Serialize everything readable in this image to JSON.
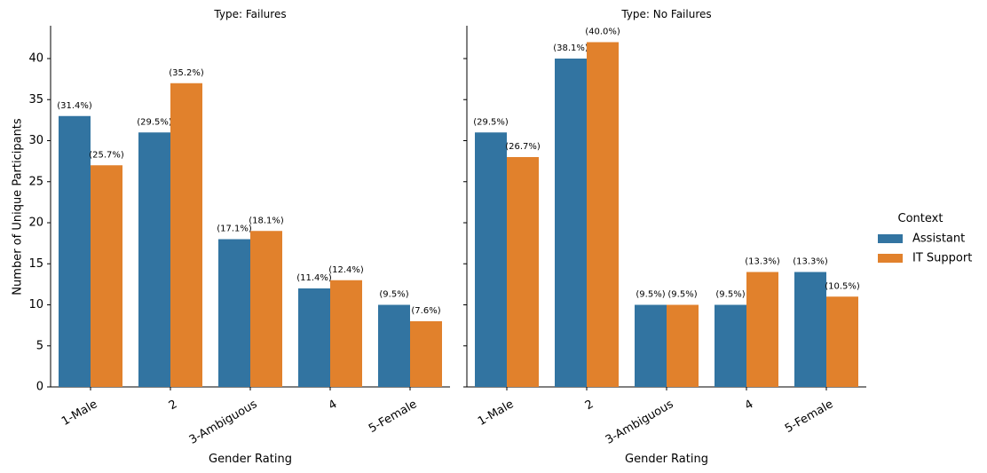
{
  "chart_data": {
    "type": "bar",
    "ylabel": "Number of Unique Participants",
    "ylim": [
      0,
      44
    ],
    "yticks": [
      0,
      5,
      10,
      15,
      20,
      25,
      30,
      35,
      40
    ],
    "grid": false,
    "legend": {
      "title": "Context",
      "placement": "right",
      "entries": [
        {
          "name": "Assistant",
          "color": "#3274a1"
        },
        {
          "name": "IT Support",
          "color": "#e1812c"
        }
      ]
    },
    "panels": [
      {
        "title": "Type: Failures",
        "xlabel": "Gender Rating",
        "categories": [
          "1-Male",
          "2",
          "3-Ambiguous",
          "4",
          "5-Female"
        ],
        "series": [
          {
            "name": "Assistant",
            "color": "#3274a1",
            "values": [
              33,
              31,
              18,
              12,
              10
            ],
            "labels": [
              "(31.4%)",
              "(29.5%)",
              "(17.1%)",
              "(11.4%)",
              "(9.5%)"
            ]
          },
          {
            "name": "IT Support",
            "color": "#e1812c",
            "values": [
              27,
              37,
              19,
              13,
              8
            ],
            "labels": [
              "(25.7%)",
              "(35.2%)",
              "(18.1%)",
              "(12.4%)",
              "(7.6%)"
            ]
          }
        ]
      },
      {
        "title": "Type: No Failures",
        "xlabel": "Gender Rating",
        "categories": [
          "1-Male",
          "2",
          "3-Ambiguous",
          "4",
          "5-Female"
        ],
        "series": [
          {
            "name": "Assistant",
            "color": "#3274a1",
            "values": [
              31,
              40,
              10,
              10,
              14
            ],
            "labels": [
              "(29.5%)",
              "(38.1%)",
              "(9.5%)",
              "(9.5%)",
              "(13.3%)"
            ]
          },
          {
            "name": "IT Support",
            "color": "#e1812c",
            "values": [
              28,
              42,
              10,
              14,
              11
            ],
            "labels": [
              "(26.7%)",
              "(40.0%)",
              "(9.5%)",
              "(13.3%)",
              "(10.5%)"
            ]
          }
        ]
      }
    ]
  }
}
